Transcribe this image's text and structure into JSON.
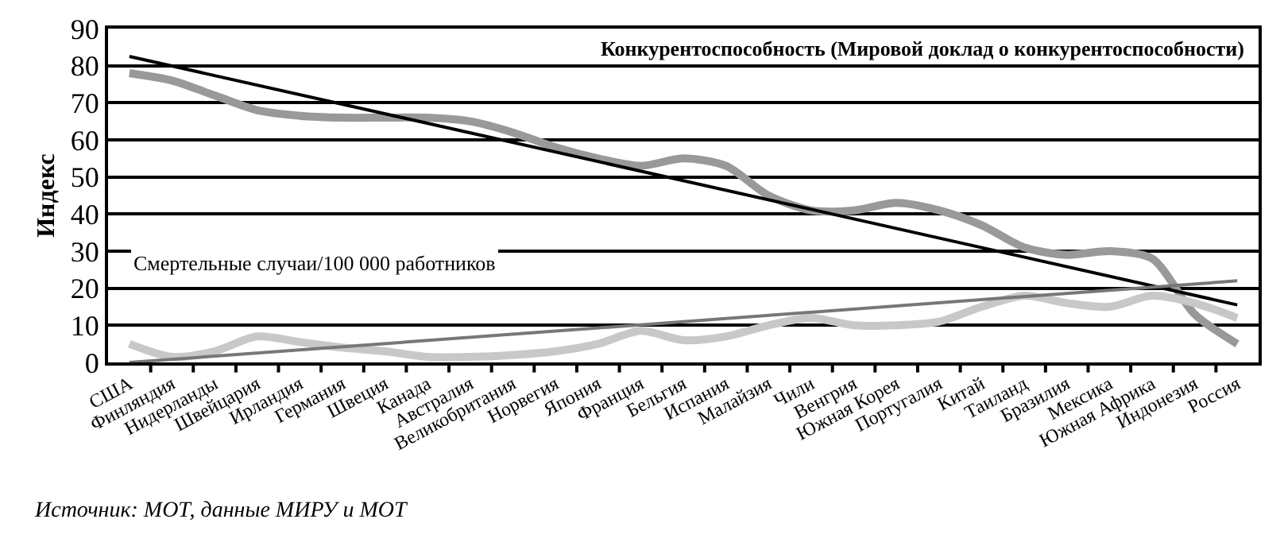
{
  "chart_data": {
    "type": "line",
    "title": "Конкурентоспособность (Мировой доклад о конкурентоспособности)",
    "ylabel": "Индекс",
    "categories": [
      "США",
      "Финляндия",
      "Нидерланды",
      "Швейцария",
      "Ирландия",
      "Германия",
      "Швеция",
      "Канада",
      "Австралия",
      "Великобритания",
      "Норвегия",
      "Япония",
      "Франция",
      "Бельгия",
      "Испания",
      "Малайзия",
      "Чили",
      "Венгрия",
      "Южная Корея",
      "Португалия",
      "Китай",
      "Таиланд",
      "Бразилия",
      "Мексика",
      "Южная Африка",
      "Индонезия",
      "Россия"
    ],
    "series": [
      {
        "color": "#999999",
        "values": [
          78,
          76,
          72,
          68,
          66.5,
          66,
          66,
          66,
          65,
          62,
          58,
          55,
          53,
          55,
          53,
          45,
          41,
          41,
          43,
          41,
          37,
          31,
          29,
          30,
          28,
          13,
          5
        ]
      },
      {
        "color": "#c8c8c8",
        "values": [
          5,
          1.5,
          3,
          7,
          5.5,
          4,
          3,
          1.5,
          1.5,
          2,
          3,
          5,
          8.5,
          6,
          7,
          10,
          12,
          10,
          10,
          11,
          15,
          18,
          16,
          15,
          18,
          16,
          12
        ]
      },
      {
        "type": "line",
        "color": "#000000",
        "x": [
          "США",
          "Россия"
        ],
        "values": [
          82.5,
          15.5
        ]
      },
      {
        "type": "line",
        "color": "#777777",
        "x": [
          "США",
          "Россия"
        ],
        "values": [
          0,
          22
        ]
      }
    ],
    "ylim": [
      0,
      90
    ],
    "yticks": [
      0,
      10,
      20,
      30,
      40,
      50,
      60,
      70,
      80,
      90
    ],
    "grid": "y",
    "legend": false,
    "marker": "none",
    "line_style": "solid",
    "annotations": [
      "Смертельные случаи/100 000 работников",
      "Источник: МОТ, данные МИРУ и МОТ"
    ]
  }
}
